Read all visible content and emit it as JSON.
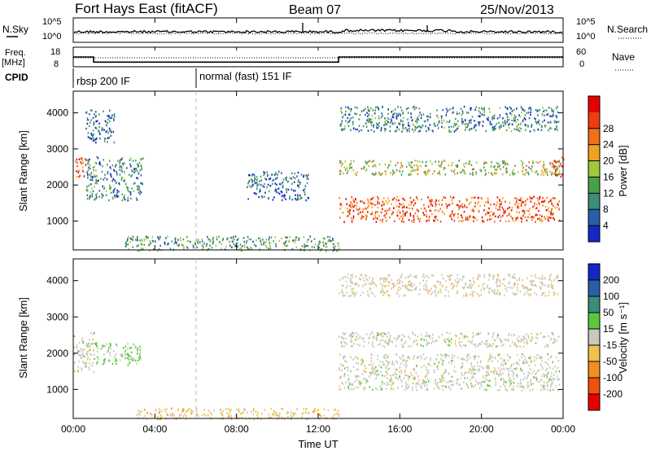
{
  "header": {
    "station": "Fort Hays East (fitACF)",
    "beam": "Beam 07",
    "date": "25/Nov/2013"
  },
  "noise_panel": {
    "left_label": "N.Sky",
    "right_label": "N.Search",
    "left_ticks": [
      "10^5",
      "10^0"
    ],
    "right_ticks": [
      "10^5",
      "10^0"
    ]
  },
  "freq_panel": {
    "label_top": "Freq.",
    "label_bottom": "[MHz]",
    "left_ticks": [
      "18",
      "8"
    ],
    "right_ticks": [
      "60",
      "0"
    ],
    "right_label": "Nave"
  },
  "cpid": {
    "label": "CPID",
    "modes": [
      {
        "label": "rbsp 200 IF",
        "start_hour": 0
      },
      {
        "label": "normal (fast) 151 IF",
        "start_hour": 6
      }
    ]
  },
  "power_panel": {
    "ylabel": "Slant Range [km]",
    "yticks": [
      "1000",
      "2000",
      "3000",
      "4000"
    ],
    "colorbar_label": "Power [dB]",
    "colorbar_ticks": [
      "4",
      "8",
      "12",
      "16",
      "20",
      "24",
      "28"
    ],
    "colors": [
      "#1428c8",
      "#2a5fa8",
      "#3c8c7a",
      "#4aa04a",
      "#a0c83c",
      "#f0a020",
      "#f07018",
      "#f03c10",
      "#e80000"
    ]
  },
  "velocity_panel": {
    "ylabel": "Slant Range [km]",
    "yticks": [
      "1000",
      "2000",
      "3000",
      "4000"
    ],
    "colorbar_label": "Velocity [m s⁻¹]",
    "colorbar_ticks": [
      "200",
      "100",
      "50",
      "15",
      "-15",
      "-50",
      "-100",
      "-200"
    ],
    "colors": [
      "#1428c8",
      "#2a5fa8",
      "#3c8c7a",
      "#5ac83c",
      "#c8c8c0",
      "#f0c050",
      "#f09020",
      "#f05010",
      "#e80000"
    ]
  },
  "x_axis": {
    "xlabel": "Time UT",
    "ticks": [
      "00:00",
      "04:00",
      "08:00",
      "12:00",
      "16:00",
      "20:00",
      "00:00"
    ]
  },
  "chart_data": {
    "type": "heatmap",
    "title": "Fort Hays East (fitACF)",
    "subtitle": "Beam 07",
    "date": "25/Nov/2013",
    "xlabel": "Time UT",
    "xlim_hours": [
      0,
      24
    ],
    "ylabel": "Slant Range [km]",
    "ylim_km": [
      200,
      4600
    ],
    "frequency_mhz": [
      {
        "start_hour": 0,
        "end_hour": 1,
        "value": 13
      },
      {
        "start_hour": 1,
        "end_hour": 13,
        "value": 9.5
      },
      {
        "start_hour": 13,
        "end_hour": 24,
        "value": 13
      }
    ],
    "panels": [
      {
        "name": "Power",
        "unit": "dB",
        "range": [
          0,
          30
        ],
        "regions": [
          {
            "t_start": 0,
            "t_end": 0.6,
            "r_start": 2200,
            "r_end": 2800,
            "value": 24
          },
          {
            "t_start": 0.6,
            "t_end": 3.4,
            "r_start": 1600,
            "r_end": 2800,
            "value": 8
          },
          {
            "t_start": 0.6,
            "t_end": 2.0,
            "r_start": 3200,
            "r_end": 4100,
            "value": 6
          },
          {
            "t_start": 8.5,
            "t_end": 11.5,
            "r_start": 1600,
            "r_end": 2400,
            "value": 6
          },
          {
            "t_start": 2.5,
            "t_end": 13.0,
            "r_start": 200,
            "r_end": 600,
            "value": 10
          },
          {
            "t_start": 13.0,
            "t_end": 23.8,
            "r_start": 1000,
            "r_end": 1700,
            "value": 24
          },
          {
            "t_start": 13.0,
            "t_end": 23.8,
            "r_start": 2300,
            "r_end": 2700,
            "value": 14
          },
          {
            "t_start": 13.0,
            "t_end": 23.8,
            "r_start": 3500,
            "r_end": 4200,
            "value": 8
          },
          {
            "t_start": 23.4,
            "t_end": 24.0,
            "r_start": 2200,
            "r_end": 2800,
            "value": 24
          }
        ]
      },
      {
        "name": "Velocity",
        "unit": "m s-1",
        "range": [
          -200,
          200
        ],
        "regions": [
          {
            "t_start": 0,
            "t_end": 1.0,
            "r_start": 1500,
            "r_end": 2600,
            "value": 0
          },
          {
            "t_start": 1.0,
            "t_end": 3.3,
            "r_start": 1700,
            "r_end": 2300,
            "value": 30
          },
          {
            "t_start": 3.0,
            "t_end": 13.0,
            "r_start": 200,
            "r_end": 500,
            "value": -40
          },
          {
            "t_start": 13.0,
            "t_end": 23.8,
            "r_start": 1000,
            "r_end": 2000,
            "value": 0
          },
          {
            "t_start": 13.0,
            "t_end": 23.8,
            "r_start": 2200,
            "r_end": 2600,
            "value": 0
          },
          {
            "t_start": 13.0,
            "t_end": 23.8,
            "r_start": 3600,
            "r_end": 4200,
            "value": -10
          }
        ]
      }
    ]
  }
}
